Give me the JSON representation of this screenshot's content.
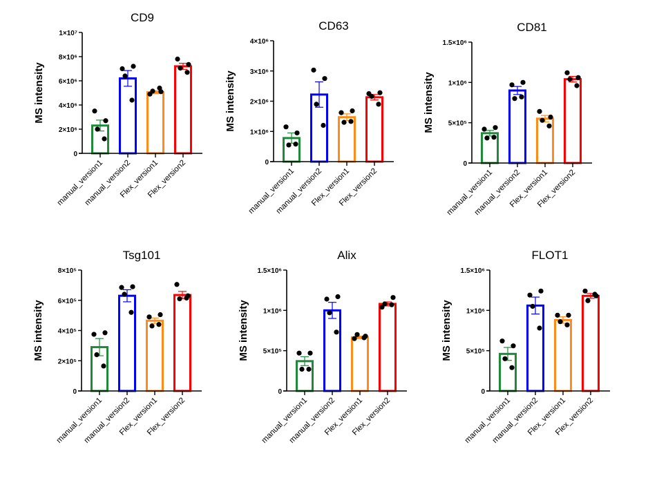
{
  "chart_data": [
    {
      "type": "bar",
      "title": "CD9",
      "xlabel": "",
      "ylabel": "MS intensity",
      "ylim": [
        0,
        10000000
      ],
      "yticks": [
        0,
        2000000,
        4000000,
        6000000,
        8000000,
        10000000
      ],
      "ytick_labels": [
        "0",
        "2×10⁶",
        "4×10⁶",
        "6×10⁶",
        "8×10⁶",
        "1×10⁷"
      ],
      "categories": [
        "manual_version1",
        "manual_version2",
        "Flex_version1",
        "Flex_version2"
      ],
      "values": [
        2300000,
        6200000,
        5050000,
        7200000
      ],
      "sem": [
        450000,
        650000,
        120000,
        250000
      ],
      "points": [
        [
          3500000,
          2700000,
          2000000,
          1200000
        ],
        [
          7000000,
          7200000,
          6400000,
          4400000
        ],
        [
          4900000,
          5100000,
          5150000,
          5400000
        ],
        [
          7800000,
          7350000,
          7050000,
          6700000
        ]
      ]
    },
    {
      "type": "bar",
      "title": "CD63",
      "xlabel": "",
      "ylabel": "MS intensity",
      "ylim": [
        0,
        4000000
      ],
      "yticks": [
        0,
        1000000,
        2000000,
        3000000,
        4000000
      ],
      "ytick_labels": [
        "0",
        "1×10⁶",
        "2×10⁶",
        "3×10⁶",
        "4×10⁶"
      ],
      "categories": [
        "manual_version1",
        "manual_version2",
        "Flex_version1",
        "Flex_version2"
      ],
      "values": [
        780000,
        2220000,
        1470000,
        2130000
      ],
      "sem": [
        170000,
        420000,
        110000,
        90000
      ],
      "points": [
        [
          1150000,
          950000,
          550000,
          580000
        ],
        [
          3030000,
          2750000,
          1900000,
          1200000
        ],
        [
          1620000,
          1680000,
          1300000,
          1330000
        ],
        [
          2250000,
          2280000,
          2160000,
          1900000
        ]
      ]
    },
    {
      "type": "bar",
      "title": "CD81",
      "xlabel": "",
      "ylabel": "MS intensity",
      "ylim": [
        0,
        1500000
      ],
      "yticks": [
        0,
        500000,
        1000000,
        1500000
      ],
      "ytick_labels": [
        "0",
        "5×10⁵",
        "1×10⁶",
        "1.5×10⁶"
      ],
      "categories": [
        "manual_version1",
        "manual_version2",
        "Flex_version1",
        "Flex_version2"
      ],
      "values": [
        370000,
        900000,
        550000,
        1040000
      ],
      "sem": [
        35000,
        50000,
        40000,
        35000
      ],
      "points": [
        [
          420000,
          440000,
          310000,
          320000
        ],
        [
          970000,
          1000000,
          800000,
          820000
        ],
        [
          640000,
          570000,
          530000,
          460000
        ],
        [
          1120000,
          1060000,
          1040000,
          960000
        ]
      ]
    },
    {
      "type": "bar",
      "title": "Tsg101",
      "xlabel": "",
      "ylabel": "MS intensity",
      "ylim": [
        0,
        800000
      ],
      "yticks": [
        0,
        200000,
        400000,
        600000,
        800000
      ],
      "ytick_labels": [
        "0",
        "2×10⁵",
        "4×10⁵",
        "6×10⁵",
        "8×10⁵"
      ],
      "categories": [
        "manual_version1",
        "manual_version2",
        "Flex_version1",
        "Flex_version2"
      ],
      "values": [
        290000,
        630000,
        465000,
        635000
      ],
      "sem": [
        57000,
        40000,
        18000,
        24000
      ],
      "points": [
        [
          375000,
          385000,
          240000,
          165000
        ],
        [
          685000,
          690000,
          640000,
          520000
        ],
        [
          490000,
          505000,
          430000,
          440000
        ],
        [
          705000,
          630000,
          610000,
          615000
        ]
      ]
    },
    {
      "type": "bar",
      "title": "Alix",
      "xlabel": "",
      "ylabel": "MS intensity",
      "ylim": [
        0,
        1500000
      ],
      "yticks": [
        0,
        500000,
        1000000,
        1500000
      ],
      "ytick_labels": [
        "0",
        "5×10⁵",
        "1×10⁶",
        "1.5×10⁶"
      ],
      "categories": [
        "manual_version1",
        "manual_version2",
        "Flex_version1",
        "Flex_version2"
      ],
      "values": [
        370000,
        1000000,
        665000,
        1080000
      ],
      "sem": [
        55000,
        100000,
        15000,
        25000
      ],
      "points": [
        [
          470000,
          470000,
          270000,
          270000
        ],
        [
          1140000,
          1170000,
          970000,
          730000
        ],
        [
          650000,
          680000,
          700000,
          660000
        ],
        [
          1040000,
          1160000,
          1080000,
          1070000
        ]
      ]
    },
    {
      "type": "bar",
      "title": "FLOT1",
      "xlabel": "",
      "ylabel": "MS intensity",
      "ylim": [
        0,
        1500000
      ],
      "yticks": [
        0,
        500000,
        1000000,
        1500000
      ],
      "ytick_labels": [
        "0",
        "5×10⁵",
        "1×10⁶",
        "1.5×10⁶"
      ],
      "categories": [
        "manual_version1",
        "manual_version2",
        "Flex_version1",
        "Flex_version2"
      ],
      "values": [
        460000,
        1060000,
        880000,
        1180000
      ],
      "sem": [
        80000,
        105000,
        40000,
        30000
      ],
      "points": [
        [
          620000,
          560000,
          400000,
          290000
        ],
        [
          1190000,
          1240000,
          1050000,
          780000
        ],
        [
          940000,
          940000,
          860000,
          820000
        ],
        [
          1240000,
          1180000,
          1120000,
          1200000
        ]
      ]
    }
  ],
  "colors": {
    "manual_version1": "#1f8a3a",
    "manual_version2": "#0000ff",
    "Flex_version1": "#ff8c1a",
    "Flex_version2": "#ff0000",
    "axis": "#000000",
    "points": "#000000"
  }
}
